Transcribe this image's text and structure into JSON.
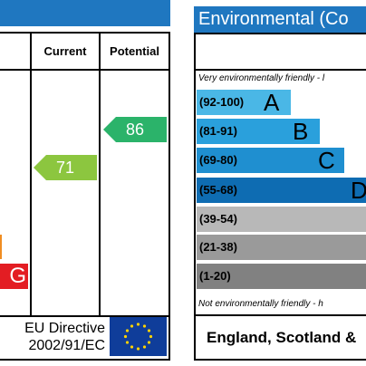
{
  "left_panel": {
    "columns": {
      "current": "Current",
      "potential": "Potential"
    },
    "current_rating": "71",
    "potential_rating": "86",
    "band_g_letter": "G",
    "footer": {
      "line1": "EU Directive",
      "line2": "2002/91/EC"
    }
  },
  "right_panel": {
    "title": "Environmental (Co",
    "top_note": "Very environmentally friendly - l",
    "bottom_note": "Not environmentally friendly - h",
    "bands": [
      {
        "range": "(92-100)",
        "letter": "A"
      },
      {
        "range": "(81-91)",
        "letter": "B"
      },
      {
        "range": "(69-80)",
        "letter": "C"
      },
      {
        "range": "(55-68)",
        "letter": "D"
      },
      {
        "range": "(39-54)",
        "letter": ""
      },
      {
        "range": "(21-38)",
        "letter": ""
      },
      {
        "range": "(1-20)",
        "letter": ""
      }
    ],
    "footer": "England, Scotland &"
  },
  "colors": {
    "header_blue": "#1f77c0",
    "current_arrow": "#8cc63f",
    "potential_arrow": "#2bb36a",
    "band_g_red": "#e31d23",
    "band_f_orange": "#f08d22"
  }
}
